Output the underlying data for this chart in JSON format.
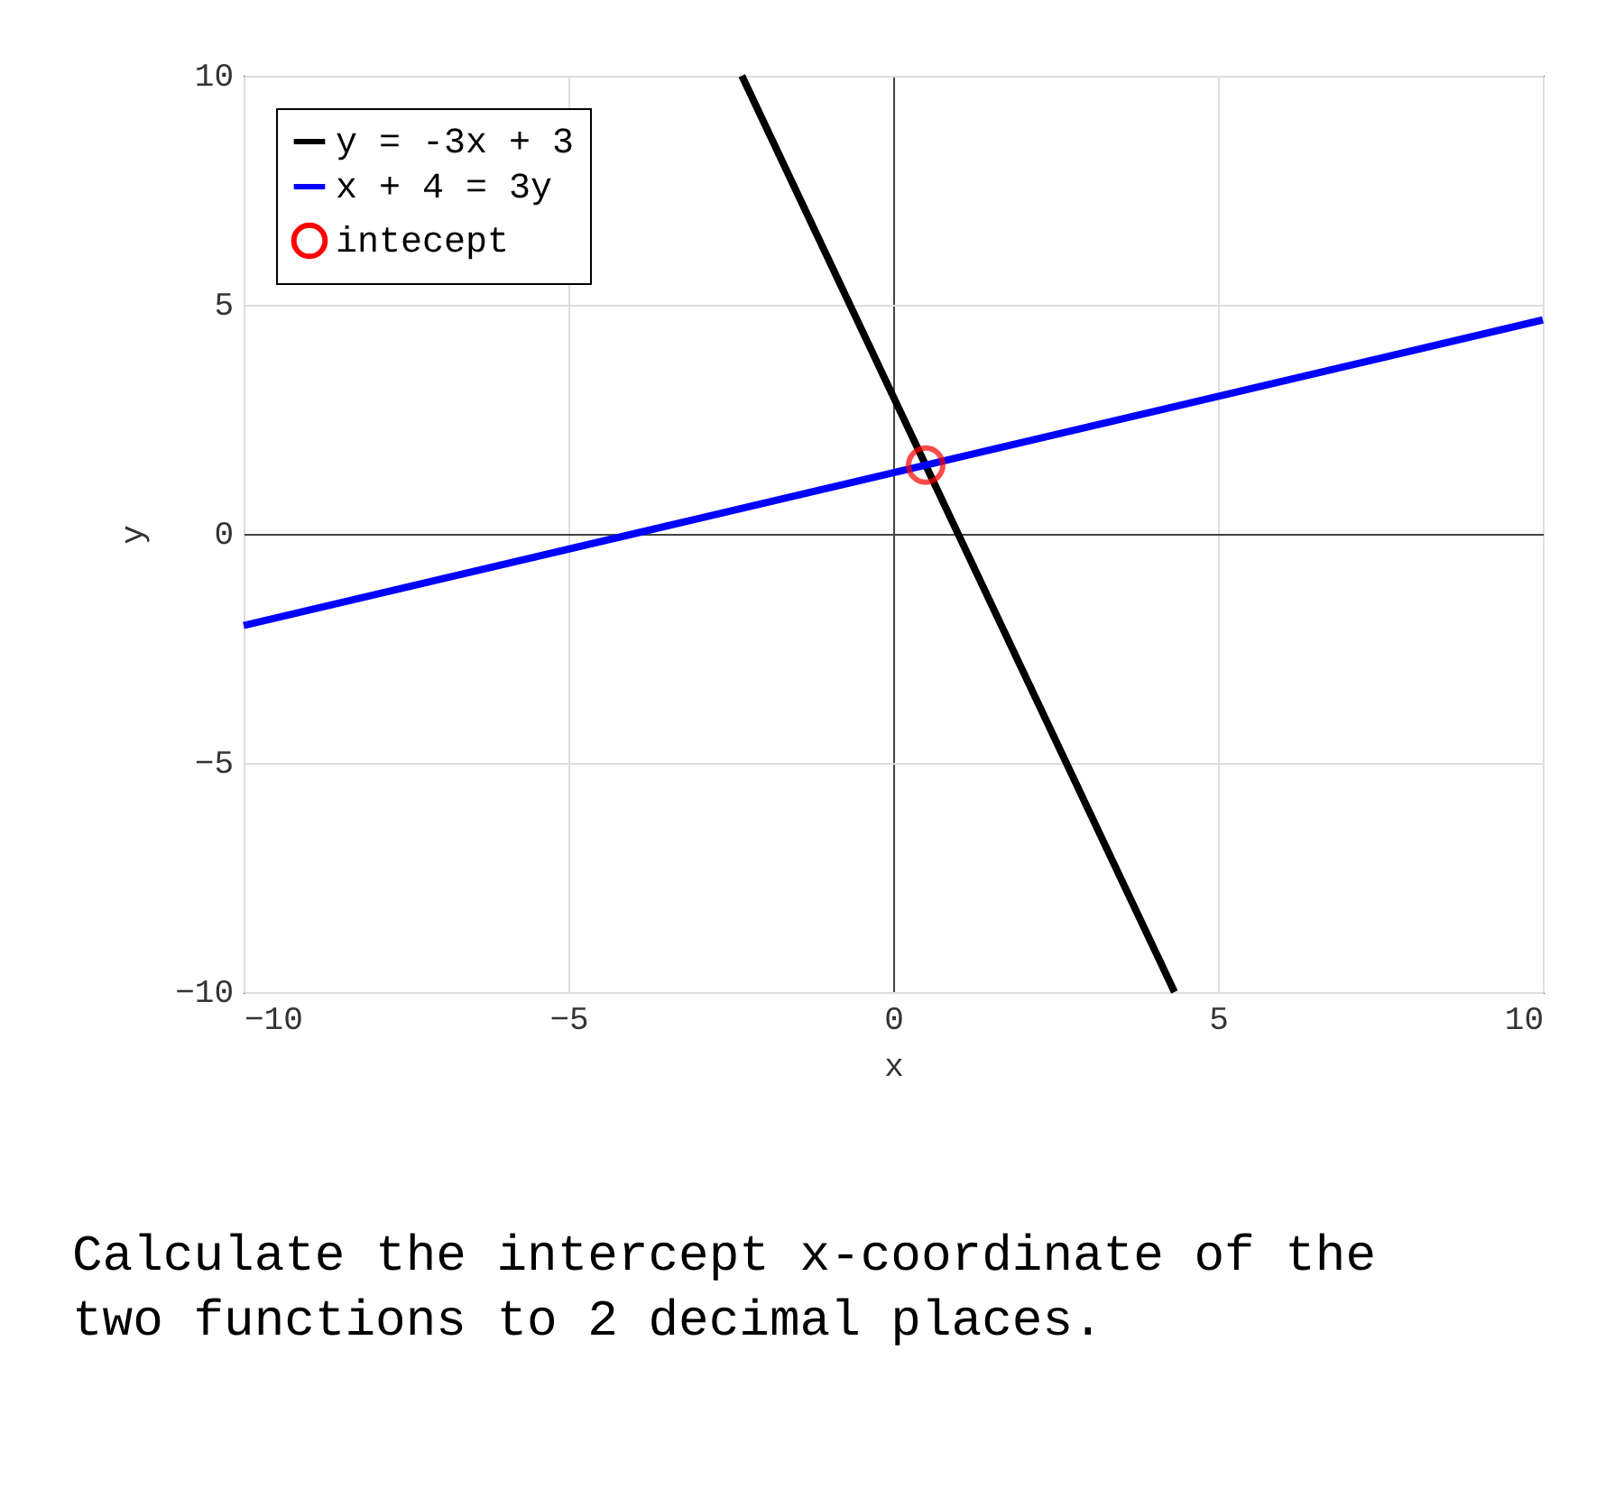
{
  "chart_data": {
    "type": "line",
    "xlabel": "x",
    "ylabel": "y",
    "series": [
      {
        "name": "y = -3x + 3",
        "color": "#000000",
        "x": [
          -2.33,
          0,
          4.33
        ],
        "values": [
          10,
          3,
          -10
        ]
      },
      {
        "name": "x + 4 = 3y",
        "color": "#0000ff",
        "x": [
          -10,
          -4,
          10
        ],
        "values": [
          -2,
          0,
          4.67
        ]
      },
      {
        "name": "intecept",
        "type": "scatter",
        "marker": "circle",
        "color": "#ff0000",
        "x": [
          0.5
        ],
        "values": [
          1.5
        ]
      }
    ],
    "xlim": [
      -10,
      10
    ],
    "xticks": [
      -10,
      -5,
      0,
      5,
      10
    ],
    "ylim": [
      -10,
      10
    ],
    "yticks": [
      -10,
      -5,
      0,
      5,
      10
    ],
    "grid": true,
    "legend": "top left",
    "annotations": [
      "Calculate the intercept x-coordinate of the two functions to 2 decimal places."
    ]
  }
}
